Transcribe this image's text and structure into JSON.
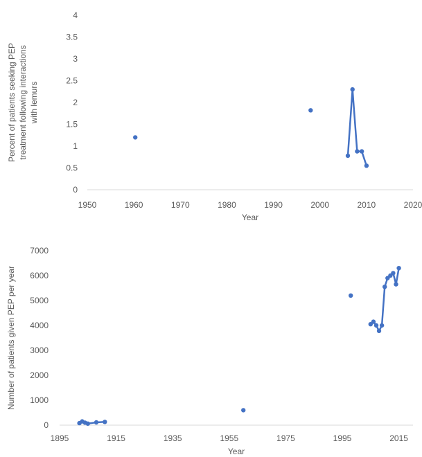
{
  "chart_data": [
    {
      "type": "scatter",
      "title": "",
      "xlabel": "Year",
      "ylabel": "Percent of patients seeking PEP treatment following interactions with lemurs",
      "ylabel_lines": [
        "Percent of patients seeking PEP",
        "treatment following interactions",
        "with lemurs"
      ],
      "xlim": [
        1950,
        2020
      ],
      "ylim": [
        0,
        4
      ],
      "xticks": [
        1950,
        1960,
        1970,
        1980,
        1990,
        2000,
        2010,
        2020
      ],
      "yticks": [
        0,
        0.5,
        1,
        1.5,
        2,
        2.5,
        3,
        3.5,
        4
      ],
      "xtick_labels": [
        "1950",
        "1960",
        "1970",
        "1980",
        "1990",
        "2000",
        "2010",
        "2020"
      ],
      "ytick_labels": [
        "0",
        "0.5",
        "1",
        "1.5",
        "2",
        "2.5",
        "3",
        "3.5",
        "4"
      ],
      "grid": false,
      "color": "#4472c4",
      "series": [
        {
          "points": [
            {
              "x": 1960.3,
              "y": 1.2
            },
            {
              "x": 1998,
              "y": 1.82
            },
            {
              "x": 2006,
              "y": 0.78
            },
            {
              "x": 2007,
              "y": 2.3
            },
            {
              "x": 2008,
              "y": 0.88
            },
            {
              "x": 2009,
              "y": 0.88
            },
            {
              "x": 2010,
              "y": 0.55
            }
          ],
          "line": [
            {
              "x": 2006,
              "y": 0.78
            },
            {
              "x": 2007,
              "y": 2.3
            },
            {
              "x": 2008,
              "y": 0.88
            },
            {
              "x": 2009,
              "y": 0.88
            },
            {
              "x": 2010,
              "y": 0.55
            }
          ]
        }
      ]
    },
    {
      "type": "scatter",
      "title": "",
      "xlabel": "Year",
      "ylabel": "Number of patients given PEP per year",
      "ylabel_lines": [
        "Number of patients given PEP per year"
      ],
      "xlim": [
        1895,
        2020
      ],
      "ylim": [
        0,
        7000
      ],
      "xticks": [
        1895,
        1915,
        1935,
        1955,
        1975,
        1995,
        2015
      ],
      "yticks": [
        0,
        1000,
        2000,
        3000,
        4000,
        5000,
        6000,
        7000
      ],
      "xtick_labels": [
        "1895",
        "1915",
        "1935",
        "1955",
        "1975",
        "1995",
        "2015"
      ],
      "ytick_labels": [
        "0",
        "1000",
        "2000",
        "3000",
        "4000",
        "5000",
        "6000",
        "7000"
      ],
      "grid": false,
      "color": "#4472c4",
      "series": [
        {
          "points": [
            {
              "x": 1902,
              "y": 80
            },
            {
              "x": 1903,
              "y": 150
            },
            {
              "x": 1904,
              "y": 100
            },
            {
              "x": 1905,
              "y": 60
            },
            {
              "x": 1908,
              "y": 110
            },
            {
              "x": 1911,
              "y": 130
            },
            {
              "x": 1960,
              "y": 600
            },
            {
              "x": 1998,
              "y": 5200
            },
            {
              "x": 2005,
              "y": 4050
            },
            {
              "x": 2006,
              "y": 4150
            },
            {
              "x": 2007,
              "y": 4000
            },
            {
              "x": 2008,
              "y": 3780
            },
            {
              "x": 2009,
              "y": 4000
            },
            {
              "x": 2010,
              "y": 5550
            },
            {
              "x": 2011,
              "y": 5900
            },
            {
              "x": 2012,
              "y": 6000
            },
            {
              "x": 2013,
              "y": 6100
            },
            {
              "x": 2014,
              "y": 5650
            },
            {
              "x": 2015,
              "y": 6300
            }
          ],
          "line_segments": [
            [
              {
                "x": 1902,
                "y": 80
              },
              {
                "x": 1903,
                "y": 150
              },
              {
                "x": 1904,
                "y": 100
              },
              {
                "x": 1905,
                "y": 60
              },
              {
                "x": 1908,
                "y": 110
              },
              {
                "x": 1911,
                "y": 130
              }
            ],
            [
              {
                "x": 2005,
                "y": 4050
              },
              {
                "x": 2006,
                "y": 4150
              },
              {
                "x": 2007,
                "y": 4000
              },
              {
                "x": 2008,
                "y": 3780
              },
              {
                "x": 2009,
                "y": 4000
              },
              {
                "x": 2010,
                "y": 5550
              },
              {
                "x": 2011,
                "y": 5900
              },
              {
                "x": 2012,
                "y": 6000
              },
              {
                "x": 2013,
                "y": 6100
              },
              {
                "x": 2014,
                "y": 5650
              },
              {
                "x": 2015,
                "y": 6300
              }
            ]
          ]
        }
      ]
    }
  ]
}
